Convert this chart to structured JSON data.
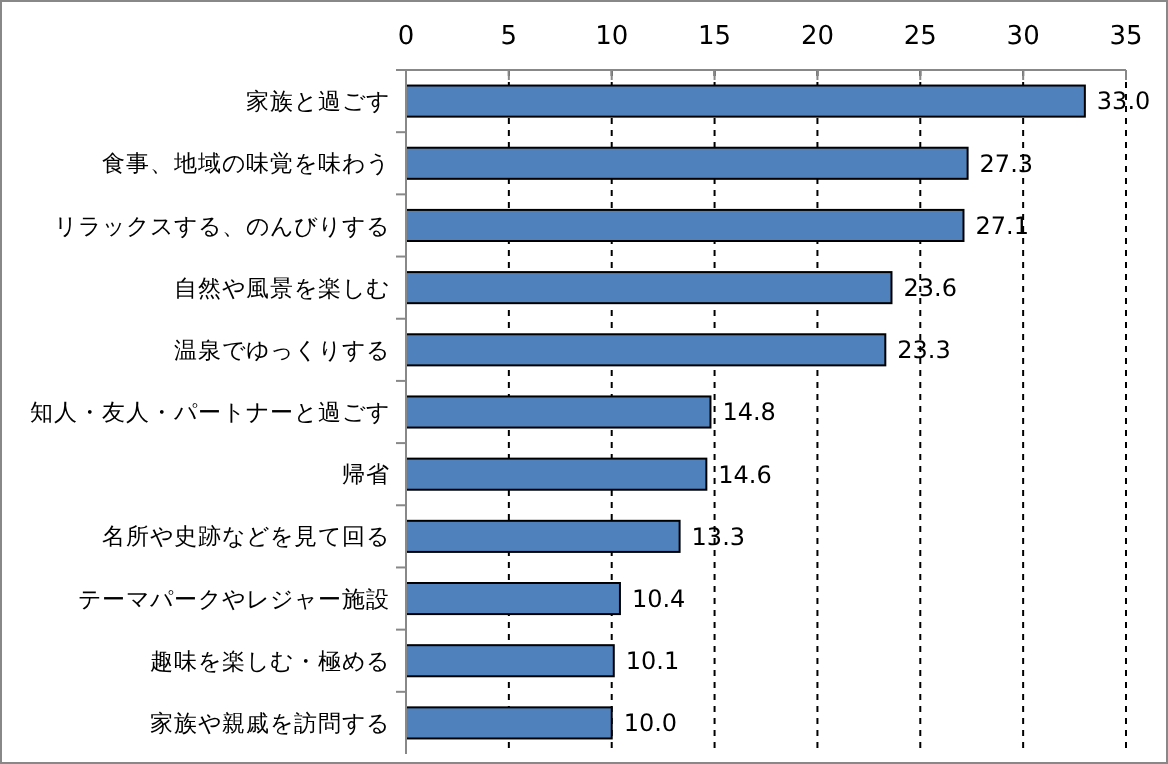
{
  "chart_data": {
    "type": "bar",
    "orientation": "horizontal",
    "categories": [
      "家族と過ごす",
      "食事、地域の味覚を味わう",
      "リラックスする、のんびりする",
      "自然や風景を楽しむ",
      "温泉でゆっくりする",
      "知人・友人・パートナーと過ごす",
      "帰省",
      "名所や史跡などを見て回る",
      "テーマパークやレジャー施設",
      "趣味を楽しむ・極める",
      "家族や親戚を訪問する"
    ],
    "values": [
      33.0,
      27.3,
      27.1,
      23.6,
      23.3,
      14.8,
      14.6,
      13.3,
      10.4,
      10.1,
      10.0
    ],
    "value_labels": [
      "33.0",
      "27.3",
      "27.1",
      "23.6",
      "23.3",
      "14.8",
      "14.6",
      "13.3",
      "10.4",
      "10.1",
      "10.0"
    ],
    "color": "#4f81bd",
    "xlim": [
      0,
      35
    ],
    "xticks": [
      0,
      5,
      10,
      15,
      20,
      25,
      30,
      35
    ],
    "grid": "x"
  }
}
